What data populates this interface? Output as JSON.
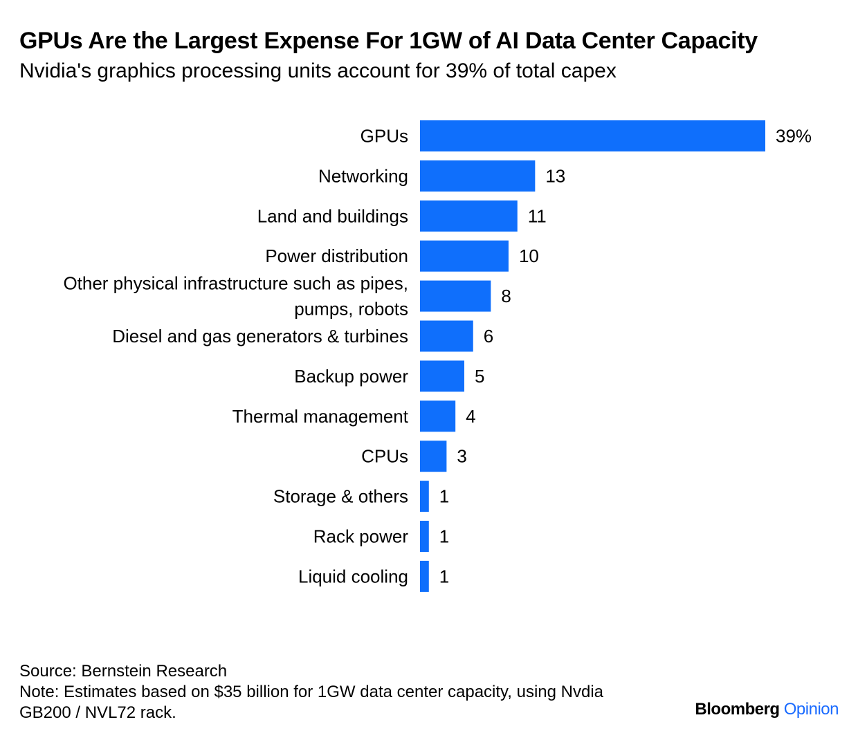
{
  "chart_data": {
    "type": "bar",
    "orientation": "horizontal",
    "title": "GPUs Are the Largest Expense For 1GW of AI Data Center Capacity",
    "subtitle": "Nvidia's graphics processing units account for 39% of total capex",
    "categories": [
      [
        "GPUs"
      ],
      [
        "Networking"
      ],
      [
        "Land and buildings"
      ],
      [
        "Power distribution"
      ],
      [
        "Other physical infrastructure such as pipes,",
        "pumps, robots"
      ],
      [
        "Diesel and gas generators & turbines"
      ],
      [
        "Backup power"
      ],
      [
        "Thermal management"
      ],
      [
        "CPUs"
      ],
      [
        "Storage & others"
      ],
      [
        "Rack power"
      ],
      [
        "Liquid cooling"
      ]
    ],
    "values": [
      39,
      13,
      11,
      10,
      8,
      6,
      5,
      4,
      3,
      1,
      1,
      1
    ],
    "value_labels": [
      "39%",
      "13",
      "11",
      "10",
      "8",
      "6",
      "5",
      "4",
      "3",
      "1",
      "1",
      "1"
    ],
    "xlim": [
      0,
      39
    ],
    "xlabel": "",
    "ylabel": "",
    "grid": false,
    "bar_color": "#0f6ffc"
  },
  "footer": {
    "source": "Source: Bernstein Research",
    "note": "Note: Estimates based on $35 billion for 1GW data center capacity, using Nvdia GB200 / NVL72 rack.",
    "brand_primary": "Bloomberg",
    "brand_secondary": "Opinion"
  }
}
